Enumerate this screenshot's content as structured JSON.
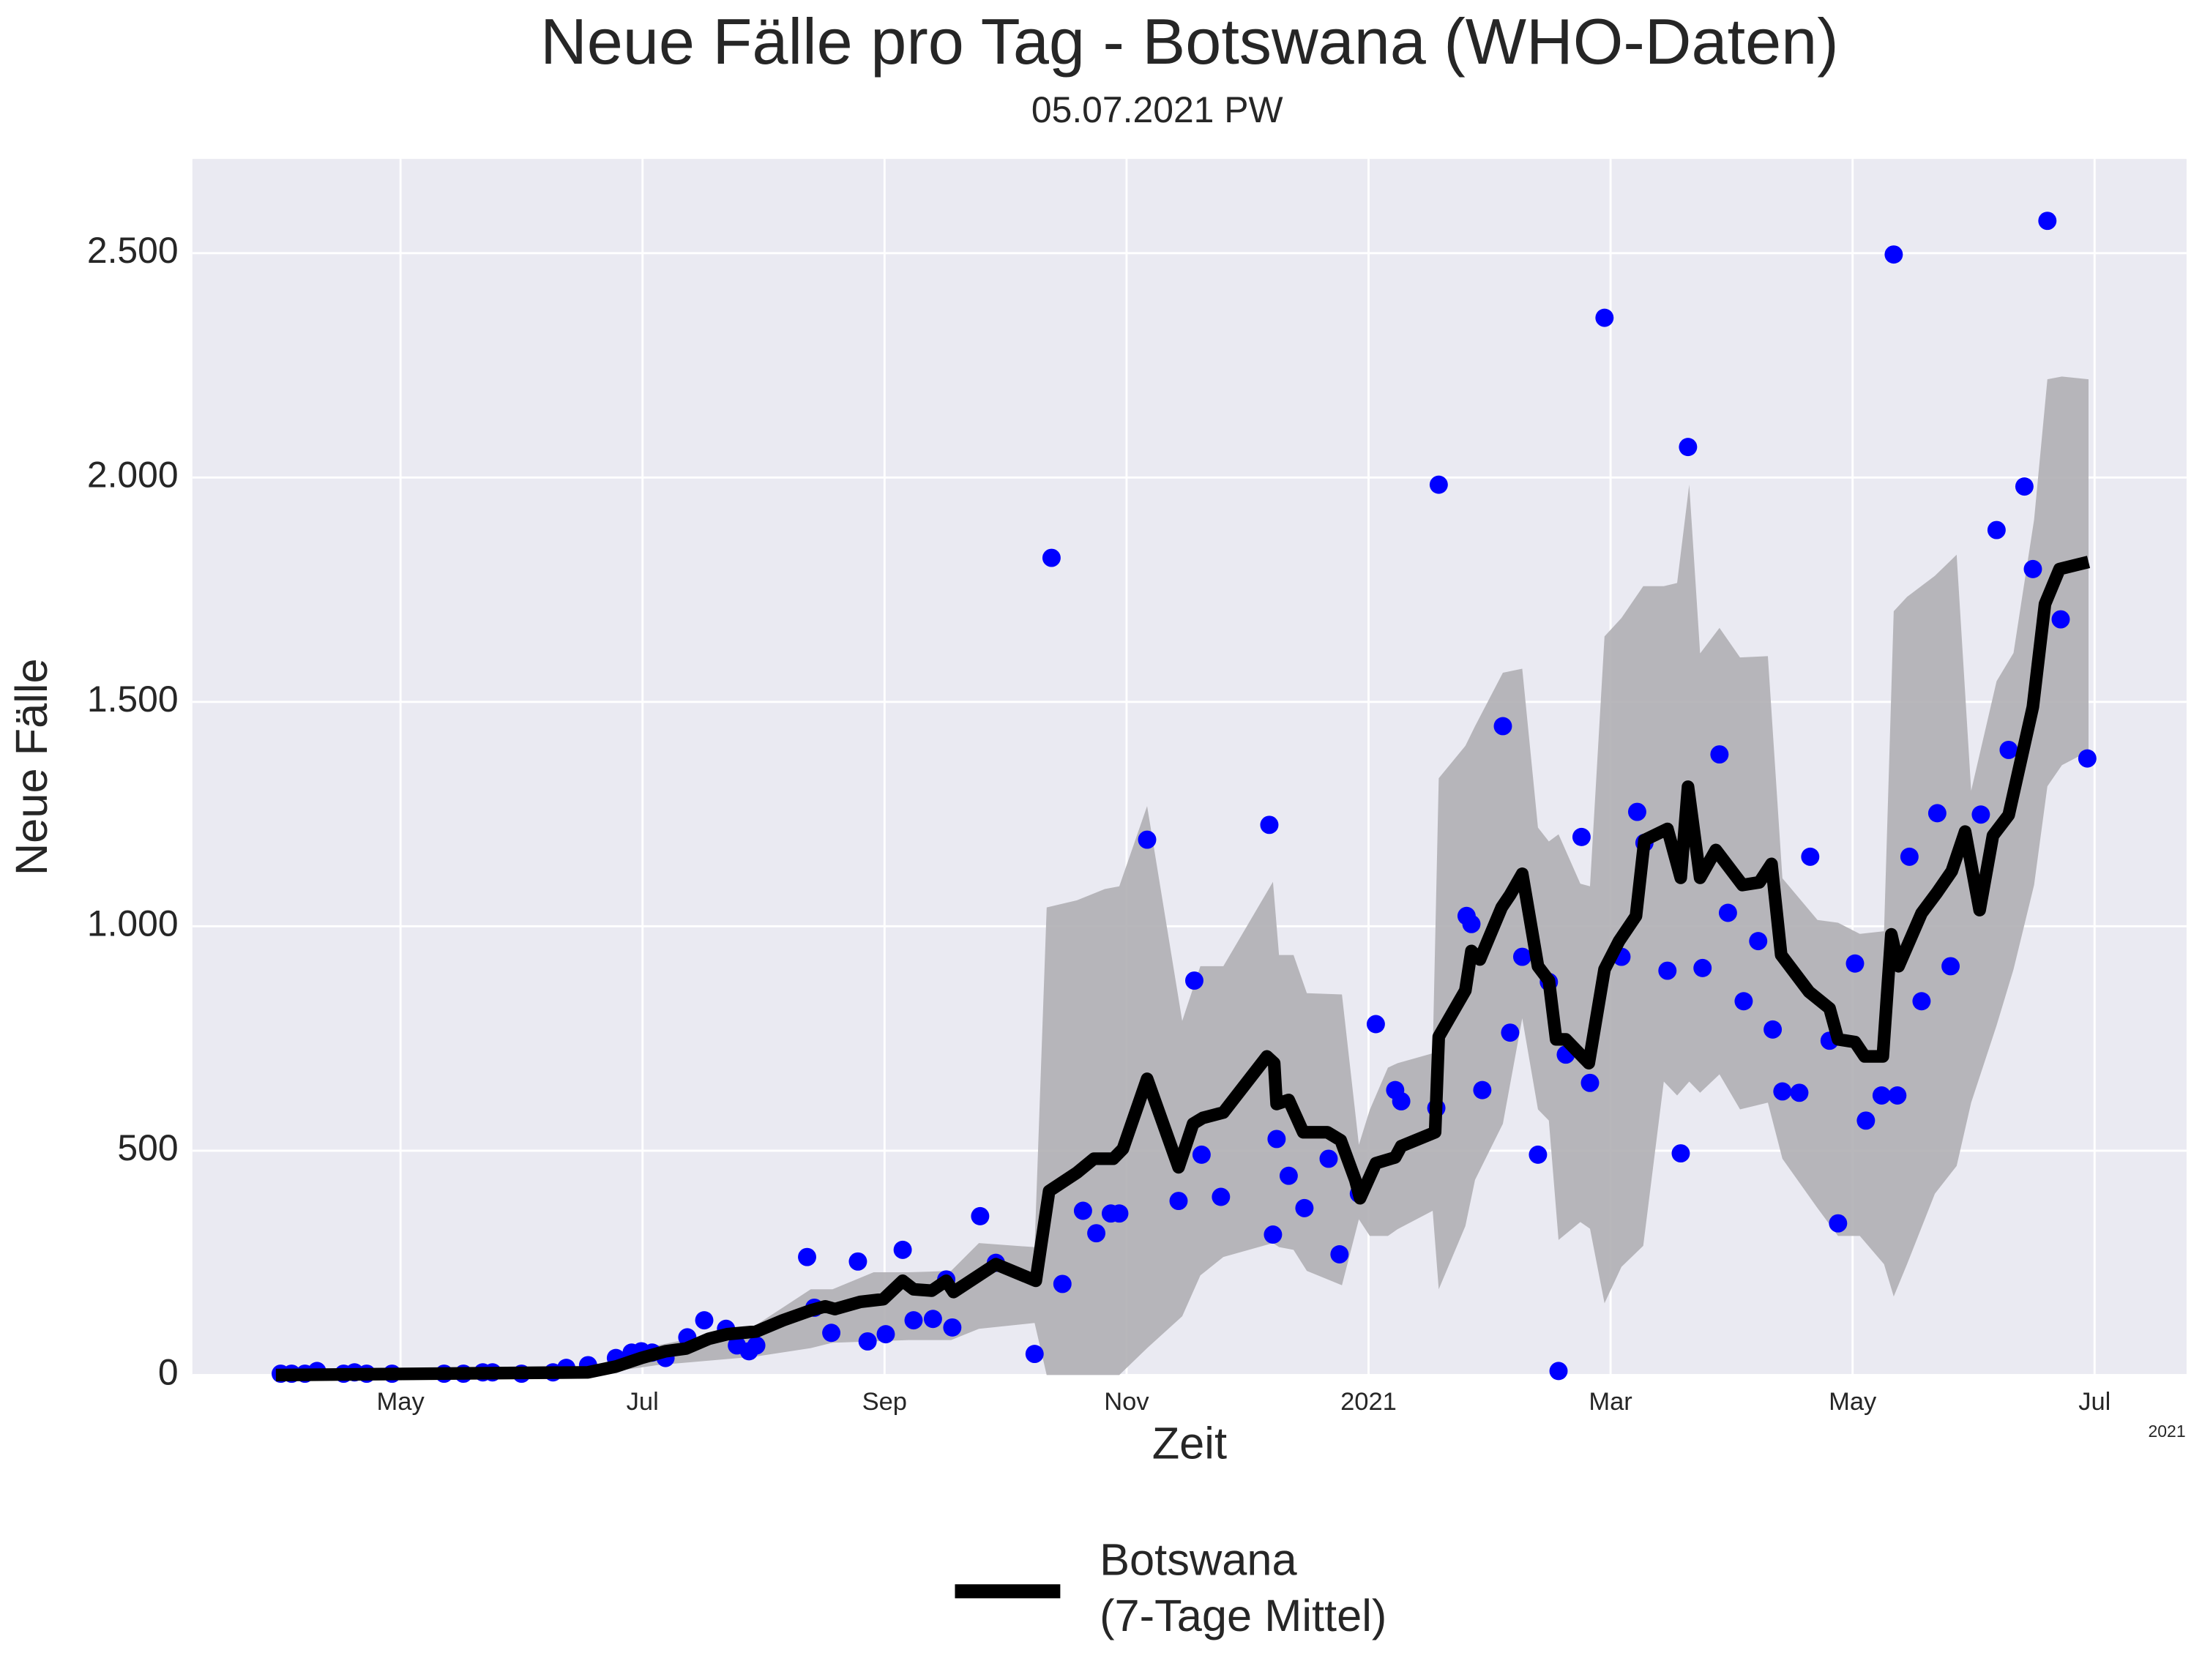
{
  "chart_data": {
    "type": "line",
    "title": "Neue Fälle pro Tag - Botswana (WHO-Daten)",
    "subtitle": "05.07.2021 PW",
    "x_label": "Zeit",
    "y_label": "Neue Fälle",
    "x_offset_label": "2021",
    "grid": true,
    "legend": "lower center",
    "xlim": [
      2.28,
      18.76
    ],
    "ylim": [
      0,
      2710
    ],
    "xticks": [
      {
        "value": 4,
        "label": "May"
      },
      {
        "value": 6,
        "label": "Jul"
      },
      {
        "value": 8,
        "label": "Sep"
      },
      {
        "value": 10,
        "label": "Nov"
      },
      {
        "value": 12,
        "label": "2021"
      },
      {
        "value": 14,
        "label": "Mar"
      },
      {
        "value": 16,
        "label": "May"
      },
      {
        "value": 18,
        "label": "Jul"
      }
    ],
    "yticks": [
      0,
      500,
      {
        "value": 1000,
        "label": "1.000"
      },
      {
        "value": 1500,
        "label": "1.500"
      },
      {
        "value": 2000,
        "label": "2.000"
      },
      {
        "value": 2500,
        "label": "2.500"
      }
    ],
    "band": {
      "color": "#b0afb4",
      "x": [
        2.97,
        5.55,
        6.12,
        6.93,
        7.39,
        7.57,
        7.91,
        8.2,
        8.55,
        8.78,
        9.24,
        9.34,
        9.59,
        9.82,
        9.94,
        10.17,
        10.46,
        10.61,
        10.8,
        11.21,
        11.26,
        11.38,
        11.49,
        11.78,
        11.92,
        12.01,
        12.16,
        12.24,
        12.53,
        12.58,
        12.8,
        12.88,
        13.11,
        13.27,
        13.4,
        13.49,
        13.57,
        13.75,
        13.83,
        13.95,
        14.09,
        14.27,
        14.44,
        14.55,
        14.65,
        14.74,
        14.9,
        15.07,
        15.3,
        15.42,
        15.71,
        15.88,
        16.06,
        16.26,
        16.34,
        16.45,
        16.68,
        16.86,
        16.98,
        17.19,
        17.33,
        17.5,
        17.61,
        17.73,
        17.95
      ],
      "upper": [
        0,
        13,
        66,
        110,
        191,
        191,
        229,
        229,
        232,
        294,
        285,
        1042,
        1058,
        1083,
        1089,
        1268,
        789,
        911,
        911,
        1099,
        936,
        936,
        851,
        848,
        513,
        591,
        685,
        695,
        717,
        1330,
        1402,
        1446,
        1565,
        1574,
        1220,
        1189,
        1205,
        1095,
        1089,
        1646,
        1687,
        1758,
        1758,
        1765,
        1984,
        1608,
        1665,
        1599,
        1602,
        1107,
        1014,
        1008,
        983,
        989,
        1702,
        1734,
        1781,
        1828,
        1302,
        1546,
        1609,
        1906,
        2219,
        2225,
        2219
      ],
      "lower": [
        0,
        0,
        22,
        41,
        60,
        72,
        75,
        78,
        78,
        103,
        116,
        0,
        0,
        0,
        0,
        60,
        131,
        222,
        263,
        294,
        285,
        279,
        232,
        200,
        347,
        310,
        310,
        325,
        366,
        191,
        332,
        435,
        560,
        795,
        592,
        567,
        301,
        341,
        326,
        160,
        241,
        288,
        654,
        623,
        654,
        629,
        670,
        592,
        607,
        482,
        372,
        310,
        310,
        247,
        175,
        247,
        404,
        466,
        607,
        779,
        904,
        1092,
        1312,
        1359,
        1390
      ]
    },
    "points": {
      "color": "#0000ff",
      "x": [
        3.01,
        3.1,
        3.21,
        3.31,
        3.53,
        3.62,
        3.72,
        3.93,
        4.36,
        4.52,
        4.68,
        4.76,
        5.0,
        5.26,
        5.37,
        5.55,
        5.78,
        5.91,
        5.99,
        6.08,
        6.19,
        6.37,
        6.51,
        6.69,
        6.78,
        6.88,
        6.94,
        7.36,
        7.42,
        7.56,
        7.78,
        7.86,
        8.01,
        8.15,
        8.24,
        8.4,
        8.51,
        8.56,
        8.79,
        8.92,
        9.24,
        9.38,
        9.47,
        9.64,
        9.75,
        9.87,
        9.94,
        10.17,
        10.43,
        10.56,
        10.62,
        10.78,
        11.18,
        11.21,
        11.24,
        11.34,
        11.47,
        11.67,
        11.76,
        11.92,
        12.06,
        12.22,
        12.27,
        12.56,
        12.58,
        12.81,
        12.85,
        12.94,
        13.11,
        13.17,
        13.27,
        13.4,
        13.49,
        13.57,
        13.63,
        13.76,
        13.83,
        13.95,
        14.09,
        14.22,
        14.28,
        14.47,
        14.58,
        14.64,
        14.76,
        14.9,
        14.97,
        15.1,
        15.22,
        15.34,
        15.42,
        15.56,
        15.65,
        15.81,
        15.88,
        16.02,
        16.11,
        16.24,
        16.34,
        16.37,
        16.47,
        16.57,
        16.7,
        16.81,
        17.06,
        17.19,
        17.29,
        17.42,
        17.49,
        17.61,
        17.72,
        17.94
      ],
      "values": [
        3,
        3,
        3,
        9,
        3,
        6,
        3,
        3,
        3,
        3,
        6,
        6,
        3,
        6,
        16,
        22,
        38,
        50,
        53,
        50,
        38,
        84,
        122,
        103,
        66,
        53,
        66,
        263,
        150,
        94,
        253,
        75,
        91,
        279,
        122,
        125,
        213,
        106,
        354,
        250,
        47,
        1821,
        203,
        366,
        316,
        360,
        360,
        1193,
        388,
        879,
        491,
        397,
        1226,
        313,
        526,
        444,
        372,
        482,
        269,
        404,
        782,
        635,
        610,
        595,
        1984,
        1023,
        1005,
        635,
        1446,
        763,
        932,
        491,
        876,
        9,
        714,
        1199,
        651,
        2356,
        932,
        1255,
        1186,
        901,
        494,
        2068,
        907,
        1383,
        1030,
        833,
        967,
        770,
        632,
        629,
        1155,
        745,
        338,
        917,
        567,
        623,
        2497,
        623,
        1155,
        833,
        1252,
        911,
        1249,
        1883,
        1393,
        1980,
        1796,
        2572,
        1684,
        1374
      ]
    },
    "series": [
      {
        "name": "Botswana\n(7-Tage Mittel)",
        "color": "#000000",
        "x": [
          2.97,
          5.55,
          5.78,
          5.99,
          6.19,
          6.36,
          6.55,
          6.7,
          6.94,
          7.16,
          7.39,
          7.51,
          7.59,
          7.8,
          7.99,
          8.15,
          8.24,
          8.39,
          8.51,
          8.57,
          8.92,
          9.25,
          9.36,
          9.59,
          9.73,
          9.89,
          9.97,
          10.17,
          10.43,
          10.55,
          10.63,
          10.8,
          11.16,
          11.22,
          11.24,
          11.34,
          11.46,
          11.66,
          11.77,
          11.89,
          11.93,
          12.06,
          12.22,
          12.27,
          12.55,
          12.58,
          12.8,
          12.85,
          12.92,
          13.1,
          13.17,
          13.27,
          13.4,
          13.49,
          13.55,
          13.63,
          13.82,
          13.95,
          14.07,
          14.21,
          14.28,
          14.47,
          14.58,
          14.64,
          14.74,
          14.87,
          15.09,
          15.23,
          15.33,
          15.41,
          15.64,
          15.81,
          15.88,
          16.02,
          16.1,
          16.25,
          16.32,
          16.38,
          16.57,
          16.7,
          16.82,
          16.93,
          17.05,
          17.16,
          17.29,
          17.49,
          17.59,
          17.71,
          17.95
        ],
        "values": [
          0,
          6,
          19,
          38,
          53,
          59,
          81,
          91,
          97,
          122,
          144,
          153,
          147,
          163,
          169,
          210,
          191,
          188,
          210,
          185,
          247,
          210,
          410,
          451,
          482,
          482,
          504,
          660,
          463,
          560,
          573,
          585,
          710,
          695,
          604,
          613,
          541,
          541,
          523,
          435,
          394,
          472,
          485,
          510,
          541,
          754,
          857,
          945,
          926,
          1042,
          1070,
          1117,
          911,
          879,
          748,
          748,
          695,
          904,
          967,
          1023,
          1192,
          1217,
          1108,
          1311,
          1108,
          1170,
          1092,
          1098,
          1139,
          936,
          854,
          817,
          748,
          742,
          710,
          710,
          982,
          911,
          1029,
          1076,
          1123,
          1211,
          1036,
          1202,
          1248,
          1489,
          1718,
          1796,
          1812
        ]
      }
    ]
  }
}
